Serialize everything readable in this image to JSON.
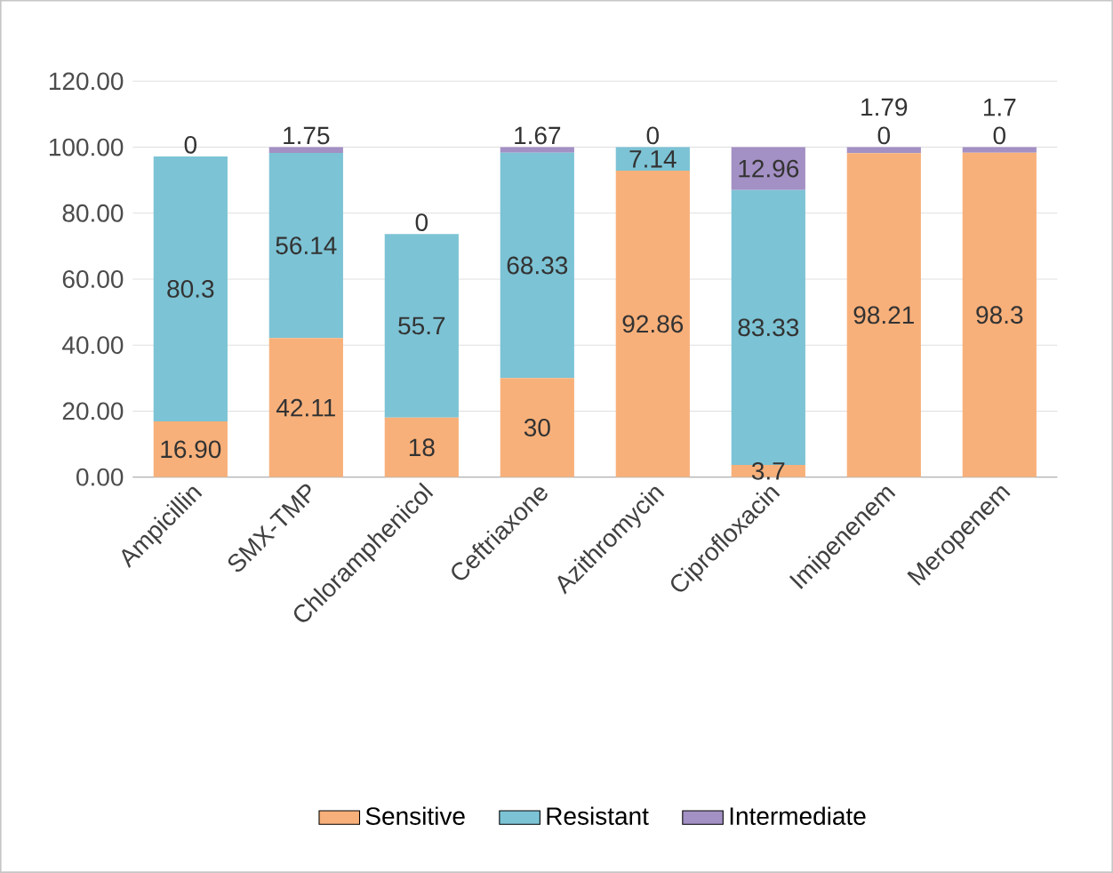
{
  "chart_data": {
    "type": "bar",
    "stacked": true,
    "categories": [
      "Ampicillin",
      "SMX-TMP",
      "Chloramphenicol",
      "Ceftriaxone",
      "Azithromycin",
      "Ciprofloxacin",
      "Imipenenem",
      "Meropenem"
    ],
    "series": [
      {
        "name": "Sensitive",
        "color": "#f8b07a",
        "values": [
          16.9,
          42.11,
          18,
          30,
          92.86,
          3.7,
          98.21,
          98.3
        ],
        "value_labels": [
          "16.90",
          "42.11",
          "18",
          "30",
          "92.86",
          "3.7",
          "98.21",
          "98.3"
        ]
      },
      {
        "name": "Resistant",
        "color": "#7cc3d5",
        "values": [
          80.3,
          56.14,
          55.7,
          68.33,
          7.14,
          83.33,
          0,
          0
        ],
        "value_labels": [
          "80.3",
          "56.14",
          "55.7",
          "68.33",
          "7.14",
          "83.33",
          "0",
          "0"
        ]
      },
      {
        "name": "Intermediate",
        "color": "#a390c4",
        "values": [
          0,
          1.75,
          0,
          1.67,
          0,
          12.96,
          1.79,
          1.7
        ],
        "value_labels": [
          "0",
          "1.75",
          "0",
          "1.67",
          "0",
          "12.96",
          "1.79",
          "1.7"
        ]
      }
    ],
    "ylim": [
      0,
      120
    ],
    "yticks": [
      {
        "value": 0,
        "label": "0.00"
      },
      {
        "value": 20,
        "label": "20.00"
      },
      {
        "value": 40,
        "label": "40.00"
      },
      {
        "value": 60,
        "label": "60.00"
      },
      {
        "value": 80,
        "label": "80.00"
      },
      {
        "value": 100,
        "label": "100.00"
      },
      {
        "value": 120,
        "label": "120.00"
      }
    ],
    "grid": "y",
    "legend": "bottom"
  }
}
